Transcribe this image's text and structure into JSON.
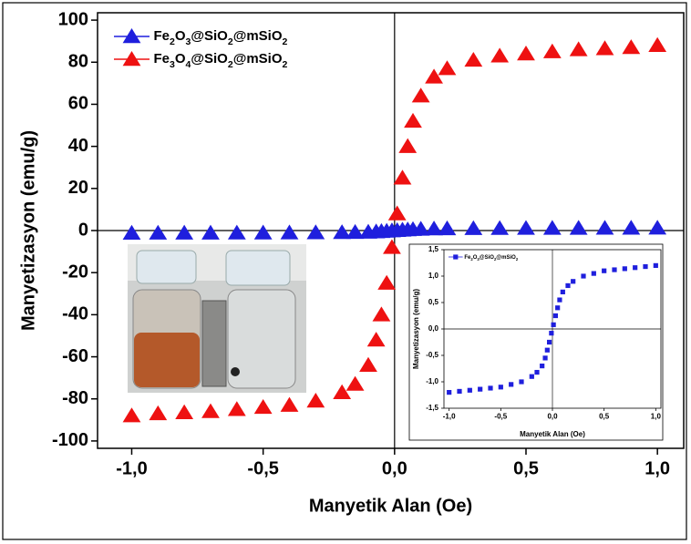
{
  "chart_data": [
    {
      "type": "scatter",
      "x_label": "Manyetik Alan (Oe)",
      "y_label": "Manyetizasyon (emu/g)",
      "xlim": [
        -1.13,
        1.1
      ],
      "ylim": [
        -103.5,
        103.5
      ],
      "xticks": [
        {
          "value": -1,
          "label": "-1,0"
        },
        {
          "value": -0.5,
          "label": "-0,5"
        },
        {
          "value": 0,
          "label": "0,0"
        },
        {
          "value": 0.5,
          "label": "0,5"
        },
        {
          "value": 1,
          "label": "1,0"
        }
      ],
      "yticks": [
        -100,
        -80,
        -60,
        -40,
        -20,
        0,
        20,
        40,
        60,
        80,
        100
      ],
      "marker": "triangle",
      "legend": "upper left",
      "x": [
        -1.0,
        -0.9,
        -0.8,
        -0.7,
        -0.6,
        -0.5,
        -0.4,
        -0.3,
        -0.2,
        -0.15,
        -0.1,
        -0.07,
        -0.05,
        -0.03,
        -0.01,
        0.01,
        0.03,
        0.05,
        0.07,
        0.1,
        0.15,
        0.2,
        0.3,
        0.4,
        0.5,
        0.6,
        0.7,
        0.8,
        0.9,
        1.0
      ],
      "series": [
        {
          "name": "Fe2O3@SiO2@mSiO2",
          "color": "#1f1fdd",
          "values": [
            -1.2,
            -1.18,
            -1.16,
            -1.14,
            -1.12,
            -1.1,
            -1.05,
            -1.0,
            -0.9,
            -0.82,
            -0.7,
            -0.55,
            -0.4,
            -0.25,
            -0.08,
            0.08,
            0.25,
            0.4,
            0.55,
            0.7,
            0.82,
            0.9,
            1.0,
            1.05,
            1.1,
            1.12,
            1.14,
            1.16,
            1.18,
            1.2
          ]
        },
        {
          "name": "Fe3O4@SiO2@mSiO2",
          "color": "#ee1111",
          "values": [
            -88,
            -87,
            -86.5,
            -86,
            -85,
            -84,
            -83,
            -81,
            -77,
            -73,
            -64,
            -52,
            -40,
            -25,
            -8,
            8,
            25,
            40,
            52,
            64,
            73,
            77,
            81,
            83,
            84,
            85,
            86,
            86.5,
            87,
            88
          ]
        }
      ]
    },
    {
      "type": "scatter",
      "x_label": "Manyetik Alan (Oe)",
      "y_label": "Manyetizasyon (emu/g)",
      "xlim": [
        -1.05,
        1.05
      ],
      "ylim": [
        -1.5,
        1.5
      ],
      "xticks": [
        {
          "value": -1,
          "label": "-1,0"
        },
        {
          "value": -0.5,
          "label": "-0,5"
        },
        {
          "value": 0,
          "label": "0,0"
        },
        {
          "value": 0.5,
          "label": "0,5"
        },
        {
          "value": 1,
          "label": "1,0"
        }
      ],
      "yticks": [
        {
          "value": -1.5,
          "label": "-1,5"
        },
        {
          "value": -1,
          "label": "-1,0"
        },
        {
          "value": -0.5,
          "label": "-0,5"
        },
        {
          "value": 0,
          "label": "0,0"
        },
        {
          "value": 0.5,
          "label": "0,5"
        },
        {
          "value": 1,
          "label": "1,0"
        },
        {
          "value": 1.5,
          "label": "1,5"
        }
      ],
      "marker": "square",
      "legend": "upper left",
      "x": [
        -1.0,
        -0.9,
        -0.8,
        -0.7,
        -0.6,
        -0.5,
        -0.4,
        -0.3,
        -0.2,
        -0.15,
        -0.1,
        -0.07,
        -0.05,
        -0.03,
        -0.01,
        0.01,
        0.03,
        0.05,
        0.07,
        0.1,
        0.15,
        0.2,
        0.3,
        0.4,
        0.5,
        0.6,
        0.7,
        0.8,
        0.9,
        1.0
      ],
      "series": [
        {
          "name": "Fe2O3@SiO2@mSiO2",
          "color": "#1f1fdd",
          "values": [
            -1.2,
            -1.18,
            -1.16,
            -1.14,
            -1.12,
            -1.1,
            -1.05,
            -1.0,
            -0.9,
            -0.82,
            -0.7,
            -0.55,
            -0.4,
            -0.25,
            -0.08,
            0.08,
            0.25,
            0.4,
            0.55,
            0.7,
            0.82,
            0.9,
            1.0,
            1.05,
            1.1,
            1.12,
            1.14,
            1.16,
            1.18,
            1.2
          ]
        }
      ]
    }
  ]
}
